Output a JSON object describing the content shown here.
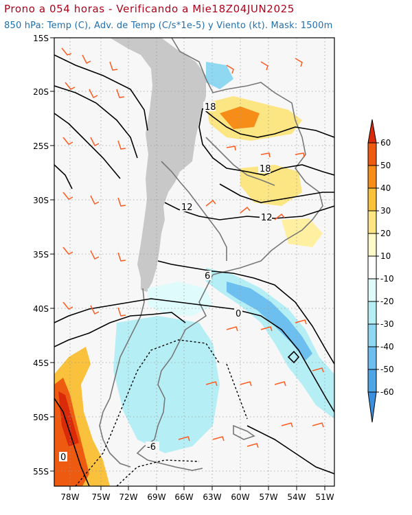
{
  "header": {
    "title": "Prono a 054 horas - Verificando a Mie18Z04JUN2025",
    "subtitle": "850 hPa: Temp (C), Adv. de Temp (C/s*1e-5) y Viento (kt). Mask: 1500m"
  },
  "map": {
    "lat_labels": [
      "15S",
      "20S",
      "25S",
      "30S",
      "35S",
      "40S",
      "45S",
      "50S",
      "55S"
    ],
    "lon_labels": [
      "78W",
      "75W",
      "72W",
      "69W",
      "66W",
      "63W",
      "60W",
      "57W",
      "54W",
      "51W"
    ],
    "contour_labels": [
      "18",
      "18",
      "12",
      "12",
      "6",
      "0",
      "0",
      "-6"
    ]
  },
  "colorbar": {
    "labels": [
      "60",
      "50",
      "40",
      "30",
      "20",
      "10",
      "-10",
      "-20",
      "-30",
      "-40",
      "-50",
      "-60"
    ],
    "colors": {
      "c60": "#d92b0a",
      "c50": "#ee5a10",
      "c40": "#f58d18",
      "c30": "#f9c13c",
      "c20": "#fce583",
      "c10": "#fef9c8",
      "cmid": "#ffffff",
      "cm10": "#e0fbfb",
      "cm20": "#b5eff5",
      "cm30": "#8fd8f2",
      "cm40": "#6cbfee",
      "cm50": "#4ea6e6",
      "cm60": "#3a8fde"
    }
  }
}
